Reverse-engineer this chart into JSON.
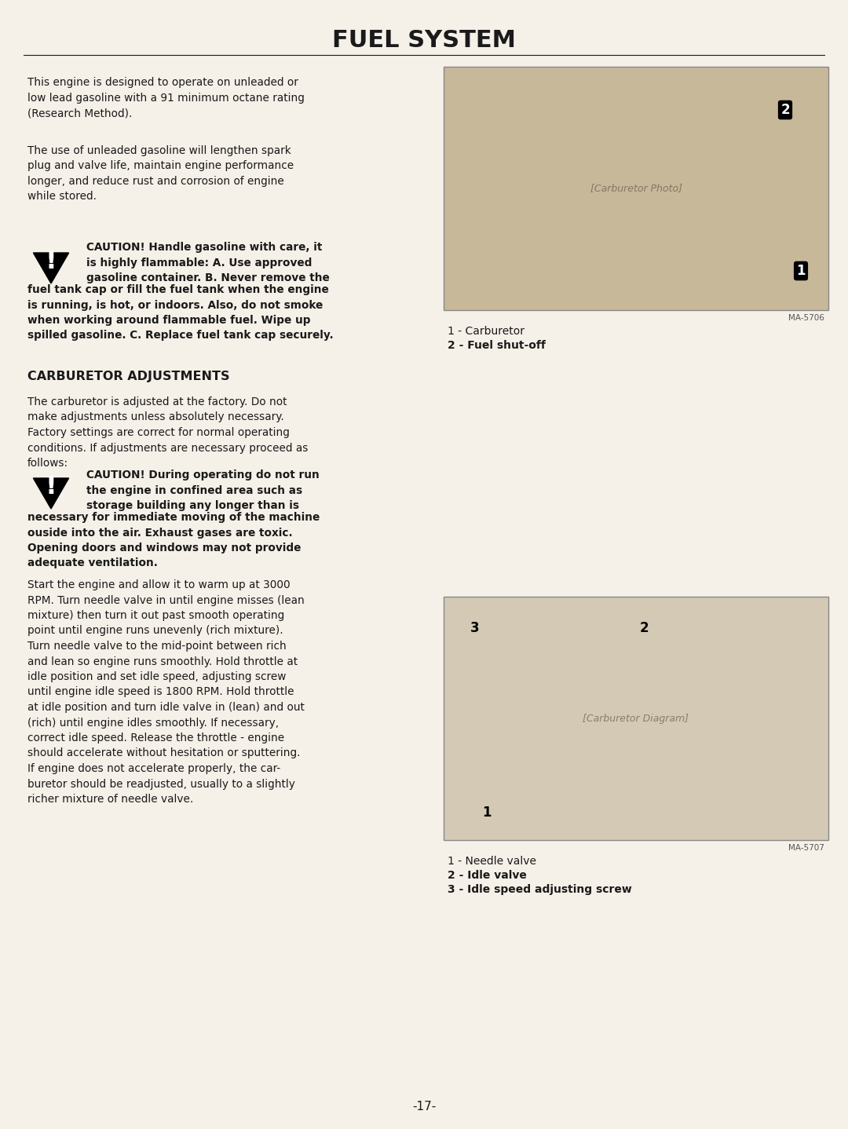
{
  "bg_color": "#f5f0e8",
  "text_color": "#1a1a1a",
  "title": "FUEL SYSTEM",
  "title_fontsize": 22,
  "title_font": "Arial Black",
  "page_number": "-17-",
  "para1": "This engine is designed to operate on unleaded or\nlow lead gasoline with a 91 minimum octane rating\n(Research Method).",
  "para2": "The use of unleaded gasoline will lengthen spark\nplug and valve life, maintain engine performance\nlonger, and reduce rust and corrosion of engine\nwhile stored.",
  "caution1_text": "CAUTION! Handle gasoline with care, it\nis highly flammable: A. Use approved\ngasoline container. B. Never remove the\nfuel tank cap or fill the fuel tank when the engine\nis running, is hot, or indoors. Also, do not smoke\nwhen working around flammable fuel. Wipe up\nspilled gasoline. C. Replace fuel tank cap securely.",
  "section_heading": "CARBURETOR ADJUSTMENTS",
  "para3": "The carburetor is adjusted at the factory. Do not\nmake adjustments unless absolutely necessary.\nFactory settings are correct for normal operating\nconditions. If adjustments are necessary proceed as\nfollows:",
  "caution2_text": "CAUTION! During operating do not run\nthe engine in confined area such as\nstorage building any longer than is\nnecessary for immediate moving of the machine\nouside into the air. Exhaust gases are toxic.\nOpening doors and windows may not provide\nadequate ventilation.",
  "para4": "Start the engine and allow it to warm up at 3000\nRPM. Turn needle valve in until engine misses (lean\nmixture) then turn it out past smooth operating\npoint until engine runs unevenly (rich mixture).\nTurn needle valve to the mid-point between rich\nand lean so engine runs smoothly. Hold throttle at\nidle position and set idle speed, adjusting screw\nuntil engine idle speed is 1800 RPM. Hold throttle\nat idle position and turn idle valve in (lean) and out\n(rich) until engine idles smoothly. If necessary,\ncorrect idle speed. Release the throttle - engine\nshould accelerate without hesitation or sputtering.\nIf engine does not accelerate properly, the car-\nburetor should be readjusted, usually to a slightly\nricher mixture of needle valve.",
  "fig1_caption1": "1 - Carburetor",
  "fig1_caption2": "2 - Fuel shut-off",
  "fig2_caption1": "1 - Needle valve",
  "fig2_caption2": "2 - Idle valve",
  "fig2_caption3": "3 - Idle speed adjusting screw",
  "img1_code": "MA-5706",
  "img2_code": "MA-5707"
}
